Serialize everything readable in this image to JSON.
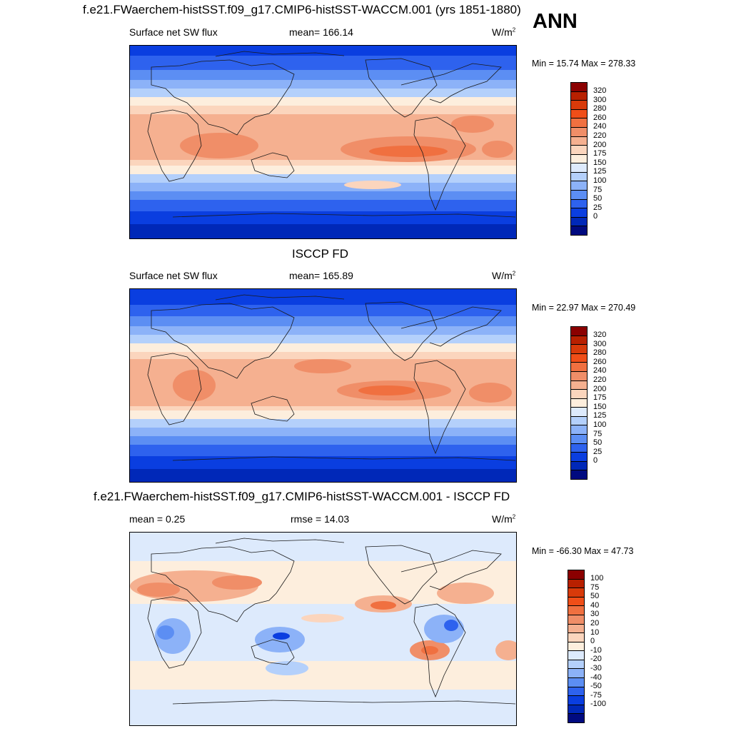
{
  "season": "ANN",
  "panels": [
    {
      "title": "f.e21.FWaerchem-histSST.f09_g17.CMIP6-histSST-WACCM.001 (yrs 1851-1880)",
      "variable": "Surface net SW flux",
      "stat": "mean= 166.14",
      "units_base": "W/m",
      "units_exp": "2",
      "minmax": "Min =  15.74 Max = 278.33",
      "colorbar_ticks": [
        "320",
        "300",
        "280",
        "260",
        "240",
        "220",
        "200",
        "175",
        "150",
        "125",
        "100",
        "75",
        "50",
        "25",
        "0"
      ],
      "colors": [
        "#8b0000",
        "#b82000",
        "#d83a0a",
        "#f04e18",
        "#f07040",
        "#f08e68",
        "#f5b090",
        "#fbd5bd",
        "#fdeedd",
        "#ddeafc",
        "#b4d0fb",
        "#8cb2f8",
        "#5c8ef3",
        "#2e62ee",
        "#0a3ee0",
        "#0028b8",
        "#000a80"
      ]
    },
    {
      "title": "ISCCP FD",
      "variable": "Surface net SW flux",
      "stat": "mean= 165.89",
      "units_base": "W/m",
      "units_exp": "2",
      "minmax": "Min =  22.97 Max = 270.49",
      "colorbar_ticks": [
        "320",
        "300",
        "280",
        "260",
        "240",
        "220",
        "200",
        "175",
        "150",
        "125",
        "100",
        "75",
        "50",
        "25",
        "0"
      ],
      "colors": [
        "#8b0000",
        "#b82000",
        "#d83a0a",
        "#f04e18",
        "#f07040",
        "#f08e68",
        "#f5b090",
        "#fbd5bd",
        "#fdeedd",
        "#ddeafc",
        "#b4d0fb",
        "#8cb2f8",
        "#5c8ef3",
        "#2e62ee",
        "#0a3ee0",
        "#0028b8",
        "#000a80"
      ]
    },
    {
      "title": "f.e21.FWaerchem-histSST.f09_g17.CMIP6-histSST-WACCM.001 - ISCCP FD",
      "variable": "mean =   0.25",
      "stat": "rmse =  14.03",
      "units_base": "W/m",
      "units_exp": "2",
      "minmax": "Min = -66.30 Max =  47.73",
      "colorbar_ticks": [
        "100",
        "75",
        "50",
        "40",
        "30",
        "20",
        "10",
        "0",
        "-10",
        "-20",
        "-30",
        "-40",
        "-50",
        "-75",
        "-100"
      ],
      "colors": [
        "#8b0000",
        "#b82000",
        "#d83a0a",
        "#f04e18",
        "#f07040",
        "#f08e68",
        "#f5b090",
        "#fbd5bd",
        "#fdeedd",
        "#ddeafc",
        "#b4d0fb",
        "#8cb2f8",
        "#5c8ef3",
        "#2e62ee",
        "#0a3ee0",
        "#0028b8",
        "#000a80"
      ]
    }
  ]
}
